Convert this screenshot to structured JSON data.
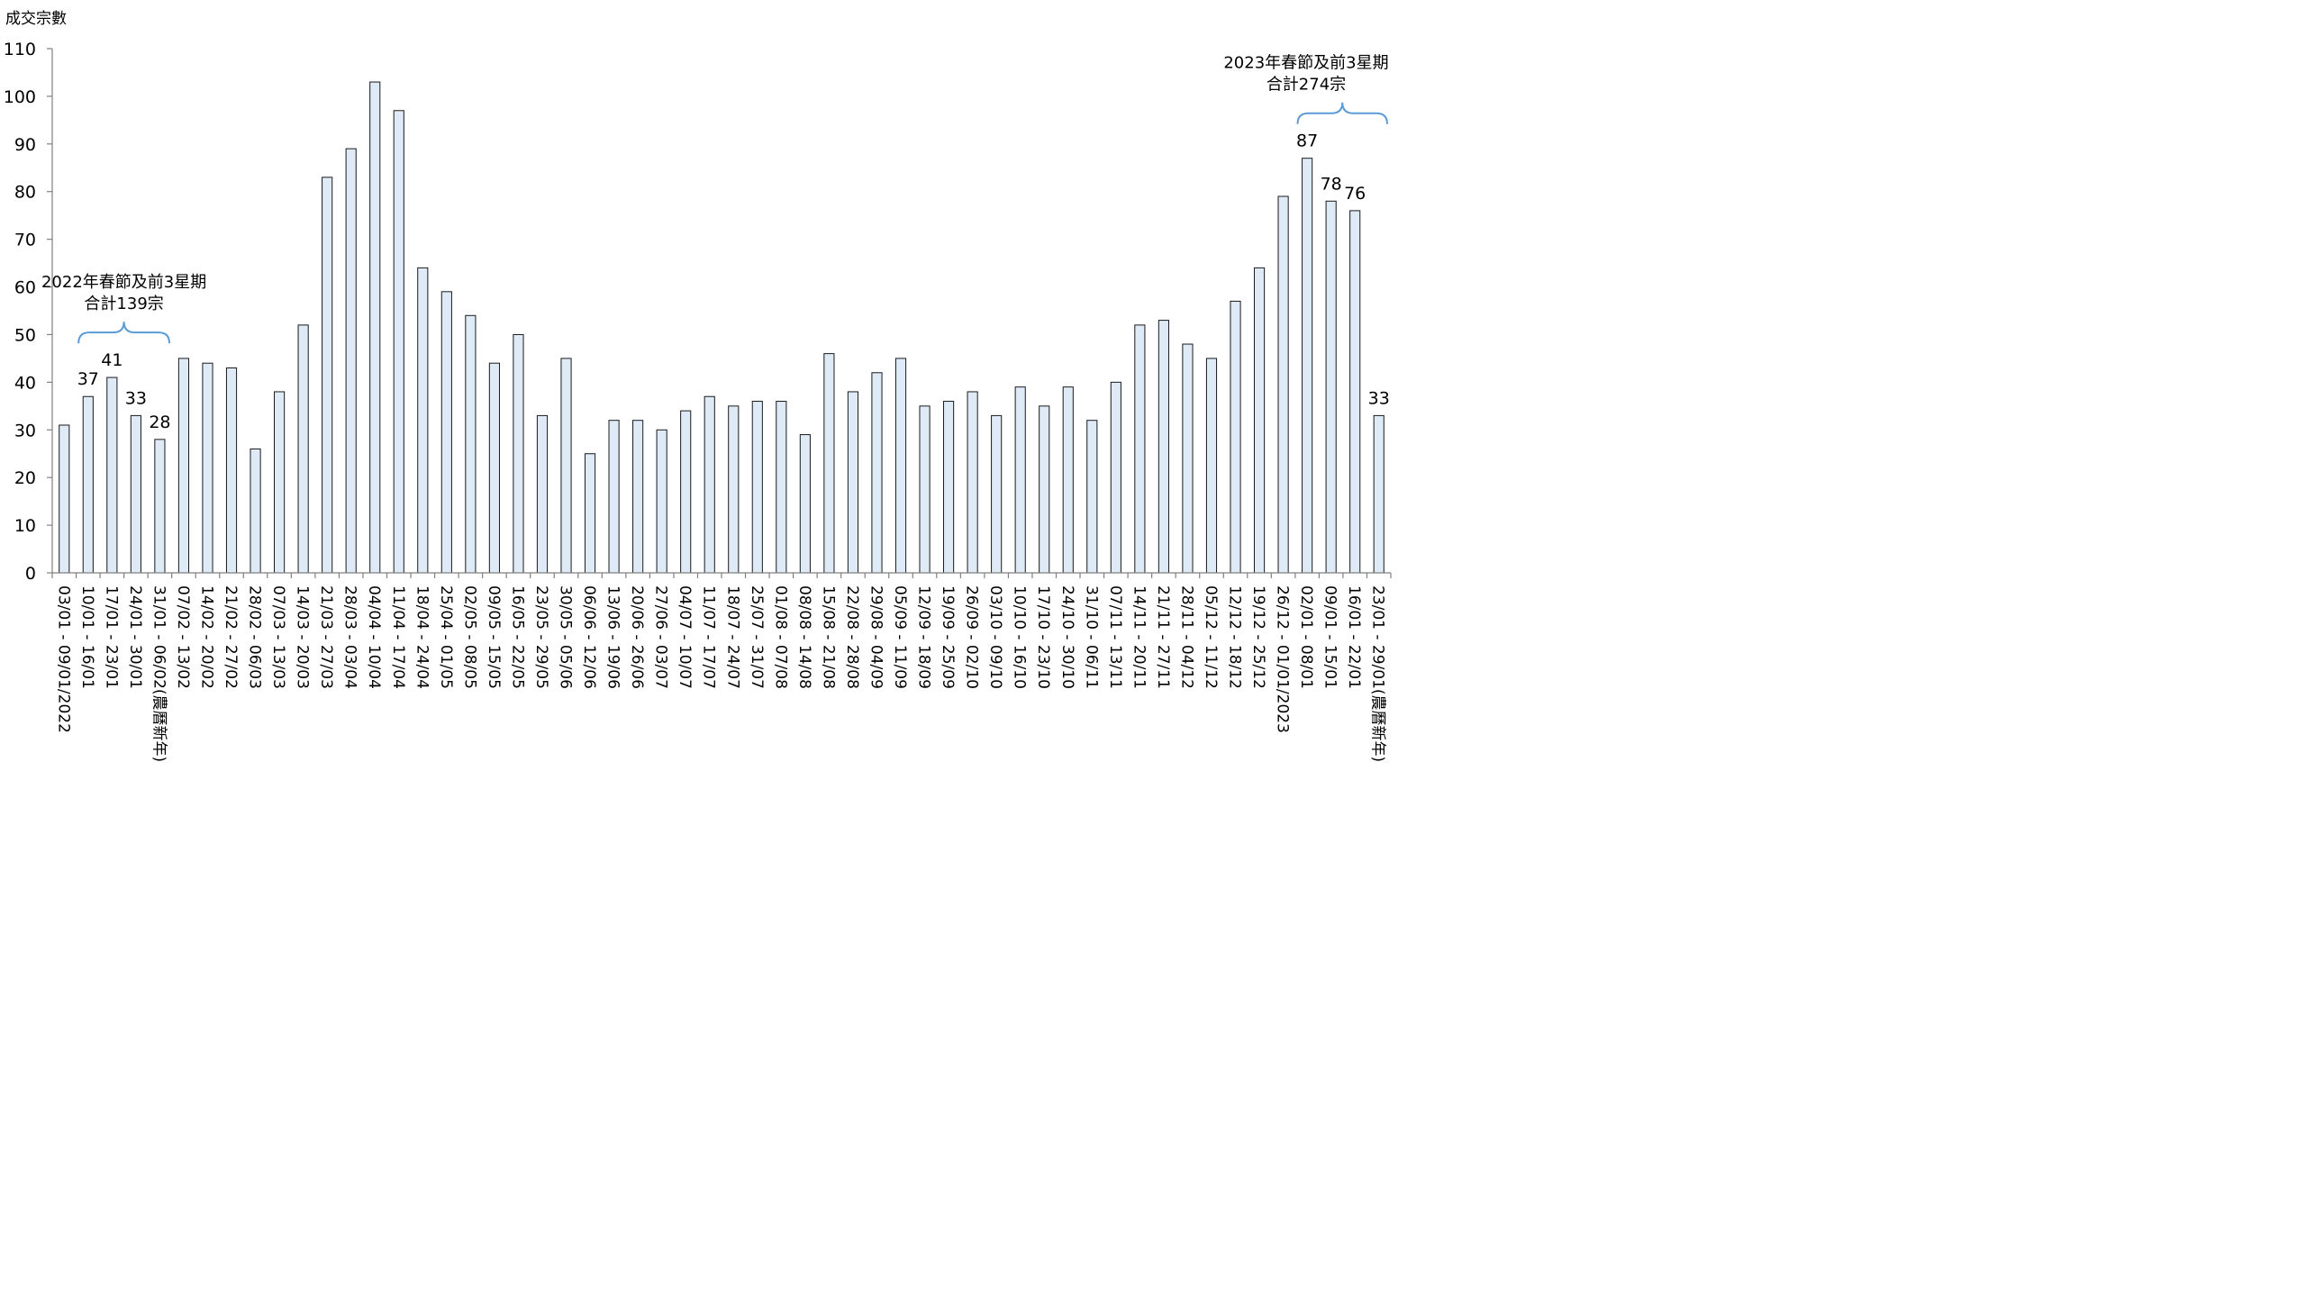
{
  "chart_data": {
    "type": "bar",
    "ylabel": "成交宗數",
    "ylim": [
      0,
      110
    ],
    "yticks": [
      0,
      10,
      20,
      30,
      40,
      50,
      60,
      70,
      80,
      90,
      100,
      110
    ],
    "grid": false,
    "colors": {
      "bar_fill": "#deeaf6",
      "bar_stroke": "#1a1a1a",
      "brace": "#5b9bd5",
      "axis": "#808080"
    },
    "categories": [
      "03/01 - 09/01/2022",
      "10/01 - 16/01",
      "17/01 - 23/01",
      "24/01 - 30/01",
      "31/01 - 06/02(農曆新年)",
      "07/02 - 13/02",
      "14/02 - 20/02",
      "21/02 - 27/02",
      "28/02 - 06/03",
      "07/03 - 13/03",
      "14/03 - 20/03",
      "21/03 - 27/03",
      "28/03 - 03/04",
      "04/04 - 10/04",
      "11/04 - 17/04",
      "18/04 - 24/04",
      "25/04 - 01/05",
      "02/05 - 08/05",
      "09/05 - 15/05",
      "16/05 - 22/05",
      "23/05 - 29/05",
      "30/05 - 05/06",
      "06/06 - 12/06",
      "13/06 - 19/06",
      "20/06 - 26/06",
      "27/06 - 03/07",
      "04/07 - 10/07",
      "11/07 - 17/07",
      "18/07 - 24/07",
      "25/07 - 31/07",
      "01/08 - 07/08",
      "08/08 - 14/08",
      "15/08 - 21/08",
      "22/08 - 28/08",
      "29/08 - 04/09",
      "05/09 - 11/09",
      "12/09 - 18/09",
      "19/09 - 25/09",
      "26/09 - 02/10",
      "03/10 - 09/10",
      "10/10 - 16/10",
      "17/10 - 23/10",
      "24/10 - 30/10",
      "31/10 - 06/11",
      "07/11 - 13/11",
      "14/11 - 20/11",
      "21/11 - 27/11",
      "28/11 - 04/12",
      "05/12 - 11/12",
      "12/12 - 18/12",
      "19/12 - 25/12",
      "26/12 - 01/01/2023",
      "02/01 - 08/01",
      "09/01 - 15/01",
      "16/01 - 22/01",
      "23/01 - 29/01(農曆新年)"
    ],
    "values": [
      31,
      37,
      41,
      33,
      28,
      45,
      44,
      43,
      26,
      38,
      52,
      83,
      89,
      103,
      97,
      64,
      59,
      54,
      44,
      50,
      33,
      45,
      25,
      32,
      32,
      30,
      34,
      37,
      35,
      36,
      36,
      29,
      46,
      38,
      42,
      45,
      35,
      36,
      38,
      33,
      39,
      35,
      39,
      32,
      40,
      52,
      53,
      48,
      45,
      57,
      64,
      79,
      87,
      78,
      76,
      33
    ],
    "data_labels": [
      {
        "index": 1,
        "text": "37"
      },
      {
        "index": 2,
        "text": "41"
      },
      {
        "index": 3,
        "text": "33"
      },
      {
        "index": 4,
        "text": "28"
      },
      {
        "index": 52,
        "text": "87"
      },
      {
        "index": 53,
        "text": "78"
      },
      {
        "index": 54,
        "text": "76"
      },
      {
        "index": 55,
        "text": "33"
      }
    ],
    "annotations": [
      {
        "line1": "2022年春節及前3星期",
        "line2": "合計139宗",
        "from_index": 1,
        "to_index": 4
      },
      {
        "line1": "2023年春節及前3星期",
        "line2": "合計274宗",
        "from_index": 52,
        "to_index": 55
      }
    ]
  }
}
